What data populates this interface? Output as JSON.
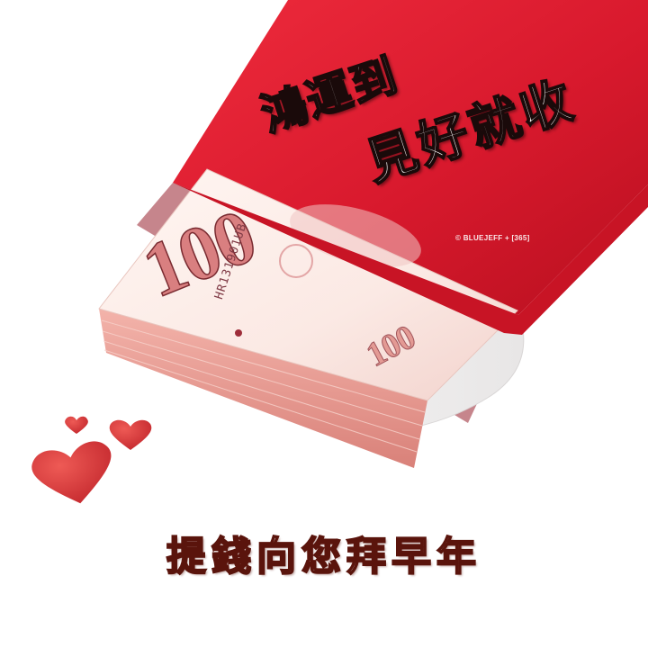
{
  "envelope": {
    "line1": "鴻運到",
    "line2": "見好就收",
    "watermark": "© BLUEJEFF + [365]",
    "color": "#d8192d"
  },
  "banknote": {
    "value": "100",
    "serial": "HR131901UB"
  },
  "greeting": "提錢向您拜早年",
  "hearts_color": "#d23a3a"
}
